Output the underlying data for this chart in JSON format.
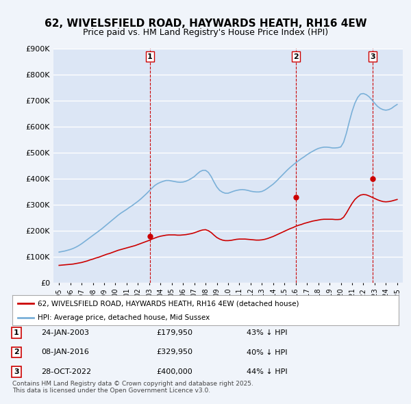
{
  "title": "62, WIVELSFIELD ROAD, HAYWARDS HEATH, RH16 4EW",
  "subtitle": "Price paid vs. HM Land Registry's House Price Index (HPI)",
  "ylabel": "",
  "background_color": "#f0f4fa",
  "plot_bg_color": "#dce6f5",
  "grid_color": "#ffffff",
  "hpi_color": "#7ab0d8",
  "price_color": "#cc0000",
  "vline_color": "#cc0000",
  "ylim": [
    0,
    900000
  ],
  "yticks": [
    0,
    100000,
    200000,
    300000,
    400000,
    500000,
    600000,
    700000,
    800000,
    900000
  ],
  "ytick_labels": [
    "£0",
    "£100K",
    "£200K",
    "£300K",
    "£400K",
    "£500K",
    "£600K",
    "£700K",
    "£800K",
    "£900K"
  ],
  "xlim_start": 1994.5,
  "xlim_end": 2025.5,
  "xticks": [
    1995,
    1996,
    1997,
    1998,
    1999,
    2000,
    2001,
    2002,
    2003,
    2004,
    2005,
    2006,
    2007,
    2008,
    2009,
    2010,
    2011,
    2012,
    2013,
    2014,
    2015,
    2016,
    2017,
    2018,
    2019,
    2020,
    2021,
    2022,
    2023,
    2024,
    2025
  ],
  "sale_dates": [
    2003.07,
    2016.03,
    2022.83
  ],
  "sale_prices": [
    179950,
    329950,
    400000
  ],
  "sale_labels": [
    "1",
    "2",
    "3"
  ],
  "legend_label_price": "62, WIVELSFIELD ROAD, HAYWARDS HEATH, RH16 4EW (detached house)",
  "legend_label_hpi": "HPI: Average price, detached house, Mid Sussex",
  "table_entries": [
    {
      "num": "1",
      "date": "24-JAN-2003",
      "price": "£179,950",
      "pct": "43% ↓ HPI"
    },
    {
      "num": "2",
      "date": "08-JAN-2016",
      "price": "£329,950",
      "pct": "40% ↓ HPI"
    },
    {
      "num": "3",
      "date": "28-OCT-2022",
      "price": "£400,000",
      "pct": "44% ↓ HPI"
    }
  ],
  "footnote": "Contains HM Land Registry data © Crown copyright and database right 2025.\nThis data is licensed under the Open Government Licence v3.0.",
  "hpi_x": [
    1995.0,
    1995.25,
    1995.5,
    1995.75,
    1996.0,
    1996.25,
    1996.5,
    1996.75,
    1997.0,
    1997.25,
    1997.5,
    1997.75,
    1998.0,
    1998.25,
    1998.5,
    1998.75,
    1999.0,
    1999.25,
    1999.5,
    1999.75,
    2000.0,
    2000.25,
    2000.5,
    2000.75,
    2001.0,
    2001.25,
    2001.5,
    2001.75,
    2002.0,
    2002.25,
    2002.5,
    2002.75,
    2003.0,
    2003.25,
    2003.5,
    2003.75,
    2004.0,
    2004.25,
    2004.5,
    2004.75,
    2005.0,
    2005.25,
    2005.5,
    2005.75,
    2006.0,
    2006.25,
    2006.5,
    2006.75,
    2007.0,
    2007.25,
    2007.5,
    2007.75,
    2008.0,
    2008.25,
    2008.5,
    2008.75,
    2009.0,
    2009.25,
    2009.5,
    2009.75,
    2010.0,
    2010.25,
    2010.5,
    2010.75,
    2011.0,
    2011.25,
    2011.5,
    2011.75,
    2012.0,
    2012.25,
    2012.5,
    2012.75,
    2013.0,
    2013.25,
    2013.5,
    2013.75,
    2014.0,
    2014.25,
    2014.5,
    2014.75,
    2015.0,
    2015.25,
    2015.5,
    2015.75,
    2016.0,
    2016.25,
    2016.5,
    2016.75,
    2017.0,
    2017.25,
    2017.5,
    2017.75,
    2018.0,
    2018.25,
    2018.5,
    2018.75,
    2019.0,
    2019.25,
    2019.5,
    2019.75,
    2020.0,
    2020.25,
    2020.5,
    2020.75,
    2021.0,
    2021.25,
    2021.5,
    2021.75,
    2022.0,
    2022.25,
    2022.5,
    2022.75,
    2023.0,
    2023.25,
    2023.5,
    2023.75,
    2024.0,
    2024.25,
    2024.5,
    2024.75,
    2025.0
  ],
  "hpi_y": [
    118000,
    120000,
    122000,
    125000,
    128000,
    132000,
    137000,
    143000,
    150000,
    158000,
    166000,
    174000,
    182000,
    190000,
    198000,
    206000,
    215000,
    224000,
    233000,
    242000,
    251000,
    260000,
    268000,
    275000,
    282000,
    290000,
    297000,
    305000,
    313000,
    322000,
    332000,
    342000,
    353000,
    364000,
    374000,
    381000,
    386000,
    390000,
    393000,
    393000,
    391000,
    389000,
    387000,
    386000,
    387000,
    390000,
    395000,
    401000,
    408000,
    418000,
    427000,
    432000,
    432000,
    424000,
    408000,
    387000,
    368000,
    355000,
    348000,
    344000,
    344000,
    348000,
    352000,
    355000,
    357000,
    358000,
    357000,
    355000,
    352000,
    350000,
    349000,
    349000,
    351000,
    356000,
    363000,
    371000,
    379000,
    389000,
    400000,
    411000,
    422000,
    433000,
    443000,
    452000,
    461000,
    469000,
    477000,
    484000,
    492000,
    499000,
    505000,
    511000,
    516000,
    519000,
    521000,
    521000,
    520000,
    518000,
    518000,
    519000,
    522000,
    540000,
    575000,
    618000,
    658000,
    690000,
    712000,
    725000,
    727000,
    723000,
    715000,
    703000,
    690000,
    678000,
    670000,
    665000,
    663000,
    665000,
    670000,
    678000,
    685000
  ],
  "price_x": [
    1995.0,
    1995.25,
    1995.5,
    1995.75,
    1996.0,
    1996.25,
    1996.5,
    1996.75,
    1997.0,
    1997.25,
    1997.5,
    1997.75,
    1998.0,
    1998.25,
    1998.5,
    1998.75,
    1999.0,
    1999.25,
    1999.5,
    1999.75,
    2000.0,
    2000.25,
    2000.5,
    2000.75,
    2001.0,
    2001.25,
    2001.5,
    2001.75,
    2002.0,
    2002.25,
    2002.5,
    2002.75,
    2003.0,
    2003.25,
    2003.5,
    2003.75,
    2004.0,
    2004.25,
    2004.5,
    2004.75,
    2005.0,
    2005.25,
    2005.5,
    2005.75,
    2006.0,
    2006.25,
    2006.5,
    2006.75,
    2007.0,
    2007.25,
    2007.5,
    2007.75,
    2008.0,
    2008.25,
    2008.5,
    2008.75,
    2009.0,
    2009.25,
    2009.5,
    2009.75,
    2010.0,
    2010.25,
    2010.5,
    2010.75,
    2011.0,
    2011.25,
    2011.5,
    2011.75,
    2012.0,
    2012.25,
    2012.5,
    2012.75,
    2013.0,
    2013.25,
    2013.5,
    2013.75,
    2014.0,
    2014.25,
    2014.5,
    2014.75,
    2015.0,
    2015.25,
    2015.5,
    2015.75,
    2016.0,
    2016.25,
    2016.5,
    2016.75,
    2017.0,
    2017.25,
    2017.5,
    2017.75,
    2018.0,
    2018.25,
    2018.5,
    2018.75,
    2019.0,
    2019.25,
    2019.5,
    2019.75,
    2020.0,
    2020.25,
    2020.5,
    2020.75,
    2021.0,
    2021.25,
    2021.5,
    2021.75,
    2022.0,
    2022.25,
    2022.5,
    2022.75,
    2023.0,
    2023.25,
    2023.5,
    2023.75,
    2024.0,
    2024.25,
    2024.5,
    2024.75,
    2025.0
  ],
  "price_y": [
    67000,
    68000,
    69000,
    70000,
    71000,
    72000,
    74000,
    76000,
    78000,
    81000,
    84000,
    88000,
    91000,
    95000,
    98000,
    102000,
    106000,
    110000,
    113000,
    117000,
    121000,
    125000,
    128000,
    131000,
    134000,
    137000,
    140000,
    143000,
    147000,
    151000,
    155000,
    159000,
    163000,
    168000,
    172000,
    176000,
    179000,
    181000,
    183000,
    184000,
    184000,
    184000,
    183000,
    183000,
    184000,
    185000,
    187000,
    189000,
    192000,
    196000,
    200000,
    203000,
    204000,
    200000,
    193000,
    183000,
    174000,
    168000,
    164000,
    162000,
    162000,
    163000,
    165000,
    167000,
    168000,
    168000,
    168000,
    167000,
    166000,
    165000,
    164000,
    164000,
    165000,
    167000,
    170000,
    174000,
    178000,
    183000,
    188000,
    193000,
    198000,
    203000,
    208000,
    212000,
    217000,
    221000,
    224000,
    228000,
    231000,
    234000,
    237000,
    239000,
    241000,
    243000,
    244000,
    244000,
    244000,
    244000,
    243000,
    243000,
    244000,
    252000,
    268000,
    287000,
    305000,
    320000,
    330000,
    337000,
    339000,
    338000,
    334000,
    329000,
    324000,
    319000,
    315000,
    312000,
    311000,
    312000,
    314000,
    317000,
    320000
  ]
}
